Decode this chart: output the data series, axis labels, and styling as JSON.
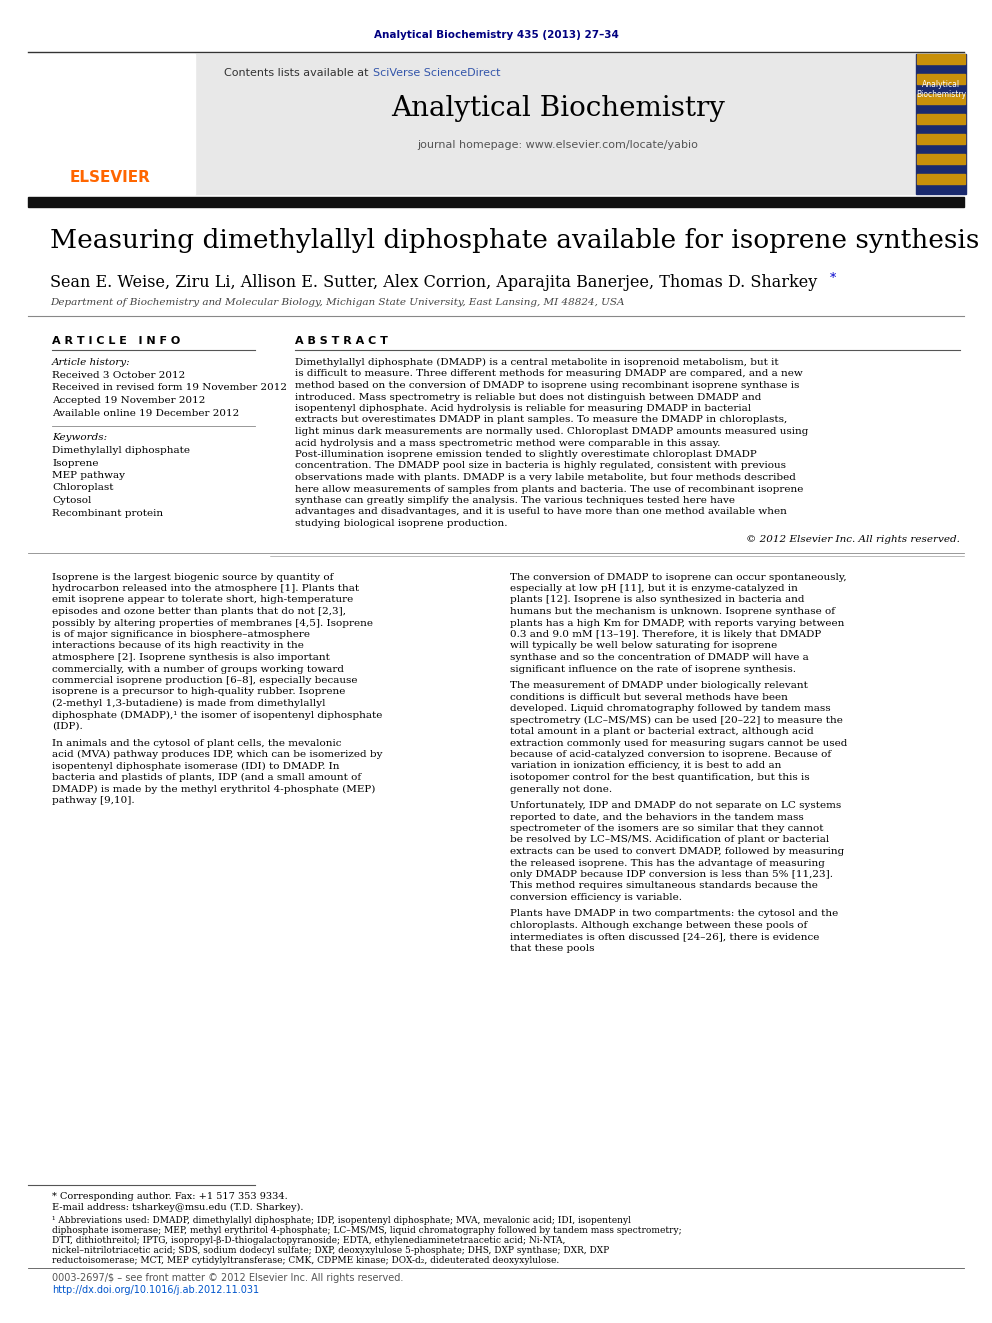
{
  "bg_color": "#ffffff",
  "top_citation": "Analytical Biochemistry 435 (2013) 27–34",
  "top_citation_color": "#000080",
  "header_bg": "#e8e8e8",
  "contents_text": "Contents lists available at ",
  "sciverse_text": "SciVerse ScienceDirect",
  "sciverse_color": "#3355aa",
  "journal_title": "Analytical Biochemistry",
  "journal_homepage": "journal homepage: www.elsevier.com/locate/yabio",
  "thick_bar_color": "#111111",
  "article_title": "Measuring dimethylallyl diphosphate available for isoprene synthesis",
  "authors_main": "Sean E. Weise, Ziru Li, Allison E. Sutter, Alex Corrion, Aparajita Banerjee, Thomas D. Sharkey",
  "authors_asterisk": "*",
  "affiliation": "Department of Biochemistry and Molecular Biology, Michigan State University, East Lansing, MI 48824, USA",
  "article_info_header": "A R T I C L E   I N F O",
  "abstract_header": "A B S T R A C T",
  "article_history_label": "Article history:",
  "received": "Received 3 October 2012",
  "revised": "Received in revised form 19 November 2012",
  "accepted": "Accepted 19 November 2012",
  "available": "Available online 19 December 2012",
  "keywords_label": "Keywords:",
  "keywords": [
    "Dimethylallyl diphosphate",
    "Isoprene",
    "MEP pathway",
    "Chloroplast",
    "Cytosol",
    "Recombinant protein"
  ],
  "abstract_text": "Dimethylallyl diphosphate (DMADP) is a central metabolite in isoprenoid metabolism, but it is difficult to measure. Three different methods for measuring DMADP are compared, and a new method based on the conversion of DMADP to isoprene using recombinant isoprene synthase is introduced. Mass spectrometry is reliable but does not distinguish between DMADP and isopentenyl diphosphate. Acid hydrolysis is reliable for measuring DMADP in bacterial extracts but overestimates DMADP in plant samples. To measure the DMADP in chloroplasts, light minus dark measurements are normally used. Chloroplast DMADP amounts measured using acid hydrolysis and a mass spectrometric method were comparable in this assay. Post-illumination isoprene emission tended to slightly overestimate chloroplast DMADP concentration. The DMADP pool size in bacteria is highly regulated, consistent with previous observations made with plants. DMADP is a very labile metabolite, but four methods described here allow measurements of samples from plants and bacteria. The use of recombinant isoprene synthase can greatly simplify the analysis. The various techniques tested here have advantages and disadvantages, and it is useful to have more than one method available when studying biological isoprene production.",
  "copyright": "© 2012 Elsevier Inc. All rights reserved.",
  "body_col1_para1": "    Isoprene is the largest biogenic source by quantity of hydrocarbon released into the atmosphere [1]. Plants that emit isoprene appear to tolerate short, high-temperature episodes and ozone better than plants that do not [2,3], possibly by altering properties of membranes [4,5]. Isoprene is of major significance in biosphere–atmosphere interactions because of its high reactivity in the atmosphere [2]. Isoprene synthesis is also important commercially, with a number of groups working toward commercial isoprene production [6–8], especially because isoprene is a precursor to high-quality rubber. Isoprene (2-methyl 1,3-butadiene) is made from dimethylallyl diphosphate (DMADP),¹ the isomer of isopentenyl diphosphate (IDP).",
  "body_col1_para2": "    In animals and the cytosol of plant cells, the mevalonic acid (MVA) pathway produces IDP, which can be isomerized by isopentenyl diphosphate isomerase (IDI) to DMADP. In bacteria and plastids of plants, IDP (and a small amount of DMADP) is made by the methyl erythritol 4-phosphate (MEP) pathway [9,10].",
  "body_col2_para1": "    The conversion of DMADP to isoprene can occur spontaneously, especially at low pH [11], but it is enzyme-catalyzed in plants [12]. Isoprene is also synthesized in bacteria and humans but the mechanism is unknown. Isoprene synthase of plants has a high Km for DMADP, with reports varying between 0.3 and 9.0 mM [13–19]. Therefore, it is likely that DMADP will typically be well below saturating for isoprene synthase and so the concentration of DMADP will have a significant influence on the rate of isoprene synthesis.",
  "body_col2_para2": "    The measurement of DMADP under biologically relevant conditions is difficult but several methods have been developed. Liquid chromatography followed by tandem mass spectrometry (LC–MS/MS) can be used [20–22] to measure the total amount in a plant or bacterial extract, although acid extraction commonly used for measuring sugars cannot be used because of acid-catalyzed conversion to isoprene. Because of variation in ionization efficiency, it is best to add an isotopomer control for the best quantification, but this is generally not done.",
  "body_col2_para3": "    Unfortunately, IDP and DMADP do not separate on LC systems reported to date, and the behaviors in the tandem mass spectrometer of the isomers are so similar that they cannot be resolved by LC–MS/MS. Acidification of plant or bacterial extracts can be used to convert DMADP, followed by measuring the released isoprene. This has the advantage of measuring only DMADP because IDP conversion is less than 5% [11,23]. This method requires simultaneous standards because the conversion efficiency is variable.",
  "body_col2_para4": "    Plants have DMADP in two compartments: the cytosol and the chloroplasts. Although exchange between these pools of intermediates is often discussed [24–26], there is evidence that these pools",
  "footnote_star_line": "* Corresponding author. Fax: +1 517 353 9334.",
  "footnote_email_line": "E-mail address: tsharkey@msu.edu (T.D. Sharkey).",
  "footnote_1_label": "¹",
  "footnote_1_text": "Abbreviations used: DMADP, dimethylallyl diphosphate; IDP, isopentenyl diphosphate; MVA, mevalonic acid; IDI, isopentenyl diphosphate isomerase; MEP, methyl erythritol 4-phosphate; LC–MS/MS, liquid chromatography followed by tandem mass spectrometry; DTT, dithiothreitol; IPTG, isopropyl-β-D-thiogalactopyranoside; EDTA, ethylenediaminetetraacetic acid; Ni-NTA, nickel–nitrilotriacetic acid; SDS, sodium dodecyl sulfate; DXP, deoxyxylulose 5-phosphate; DHS, DXP synthase; DXR, DXP reductoisomerase; MCT, MEP cytidylyltransferase; CMK, CDPME kinase; DOX-d₂, dideuterated deoxyxylulose.",
  "bottom_bar_text": "0003-2697/$ – see front matter © 2012 Elsevier Inc. All rights reserved.",
  "bottom_doi": "http://dx.doi.org/10.1016/j.ab.2012.11.031",
  "elsevier_color": "#FF6600",
  "cover_bg": "#1a2a6e",
  "cover_stripe": "#c8900a"
}
